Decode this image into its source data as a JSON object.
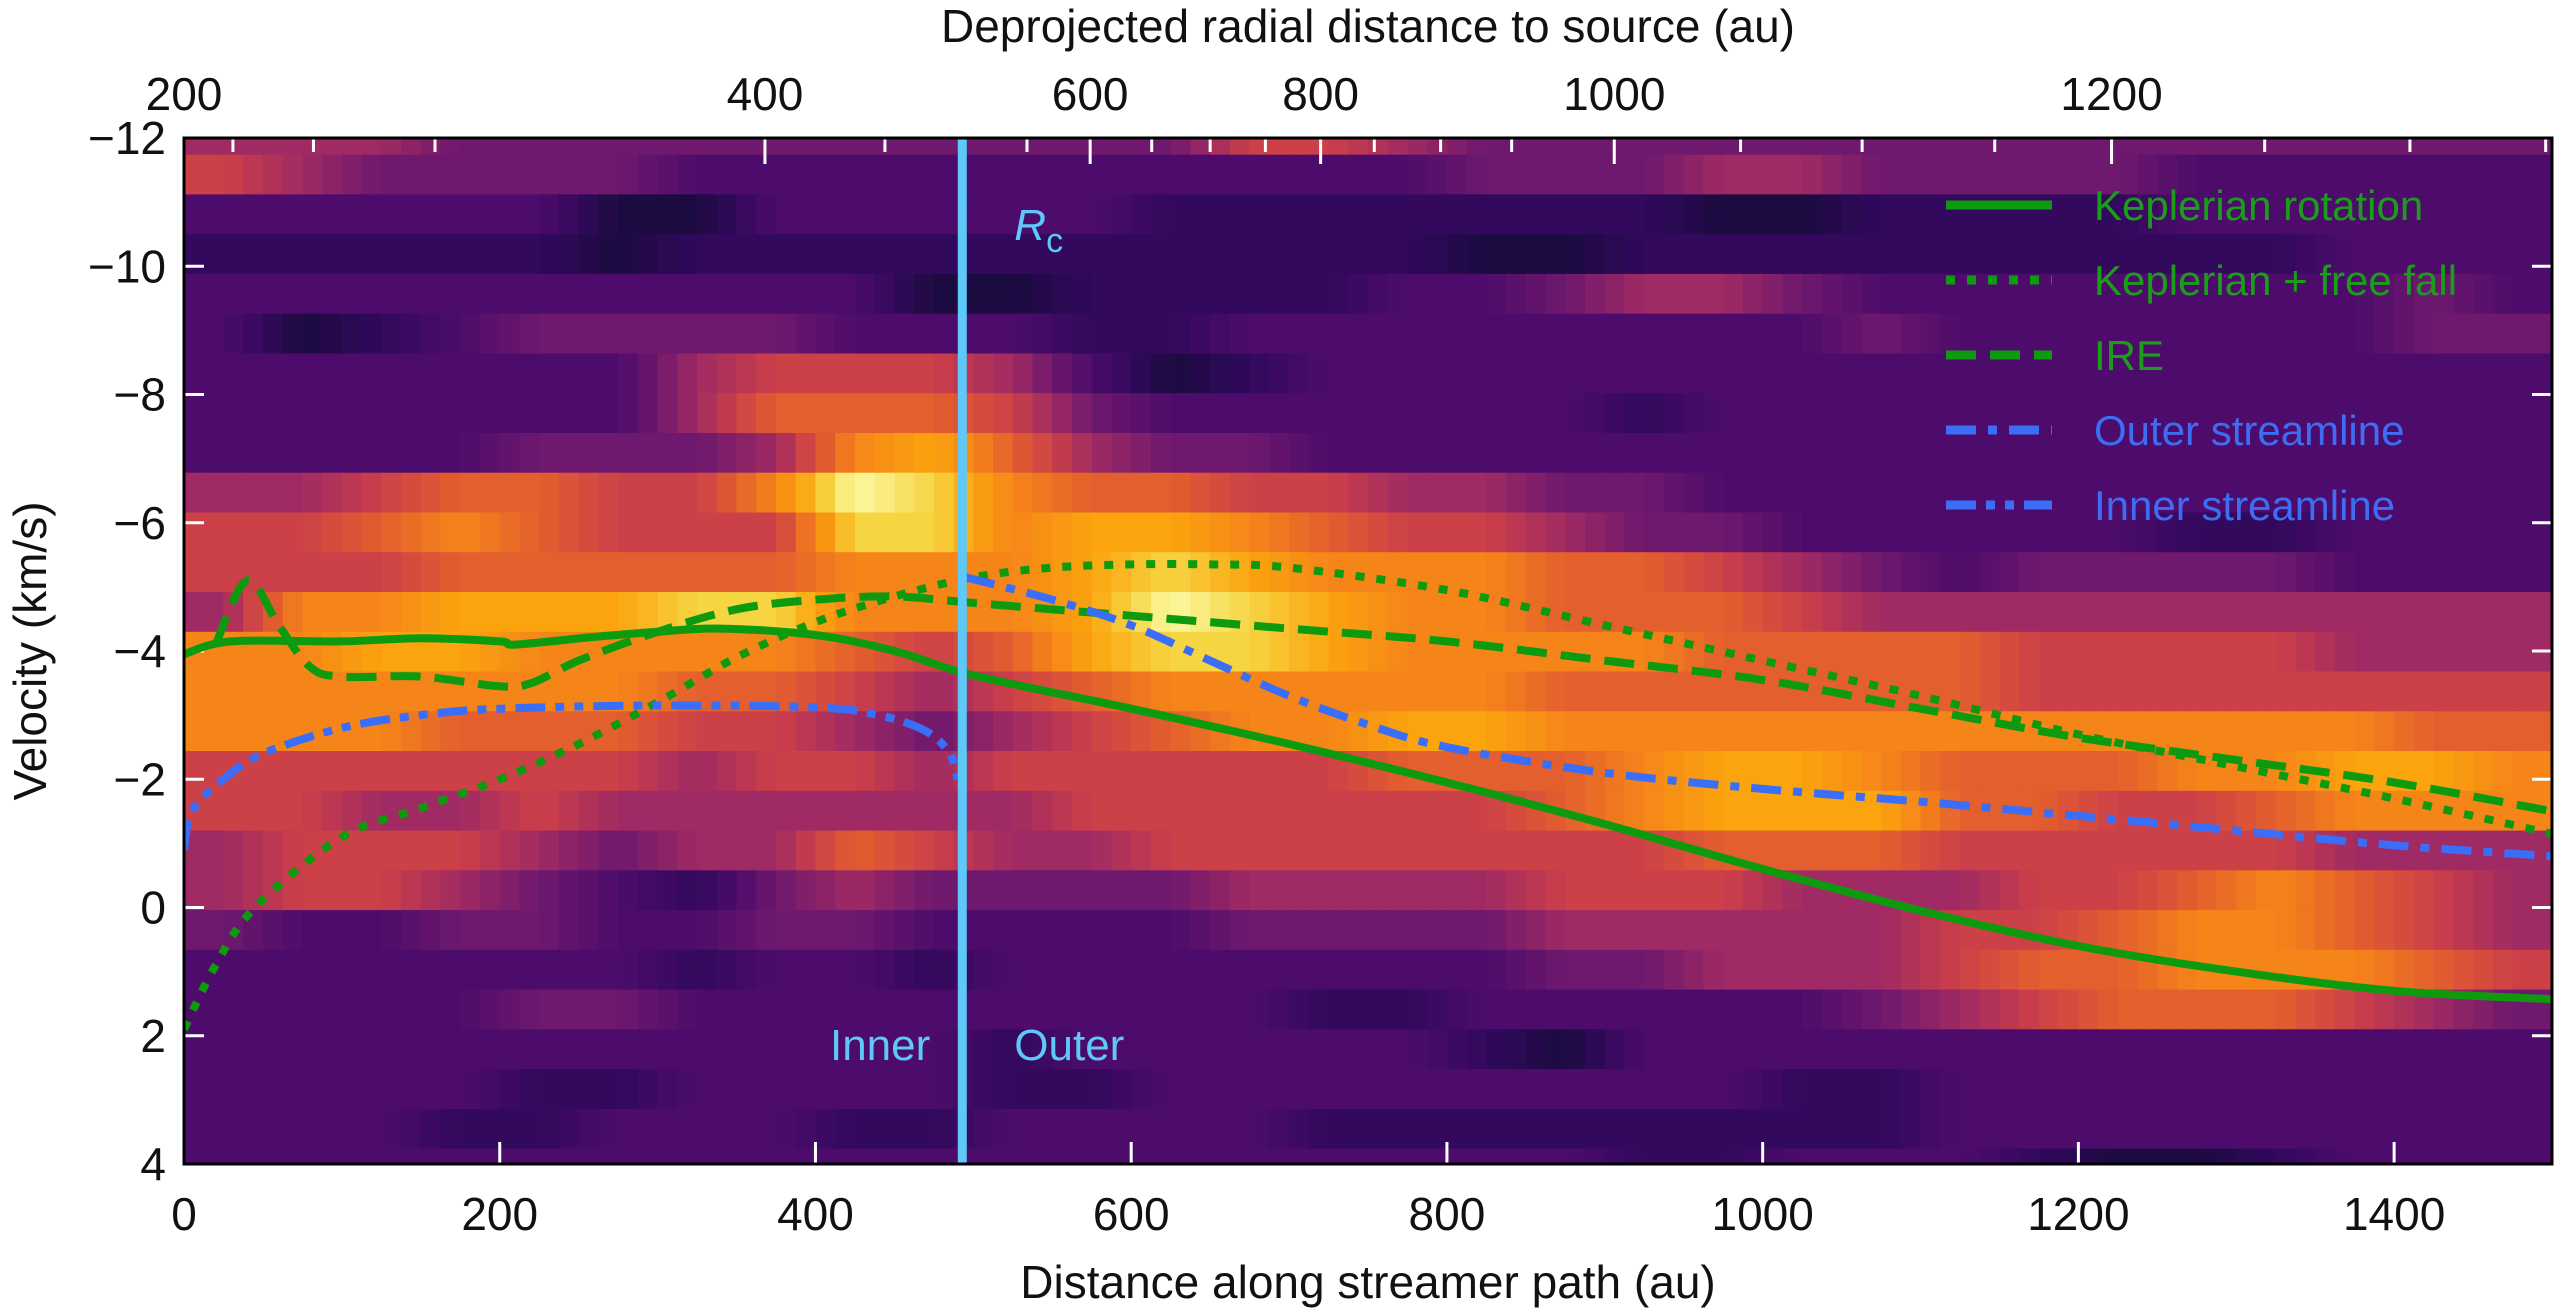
{
  "chart_data": {
    "type": "heatmap",
    "title": "",
    "xlabel": "Distance along streamer path (au)",
    "ylabel": "Velocity (km/s)",
    "top_xlabel": "Deprojected radial distance to source (au)",
    "xlim": [
      0,
      1500
    ],
    "ylim": [
      4,
      -12
    ],
    "x_ticks": [
      0,
      200,
      400,
      600,
      800,
      1000,
      1200,
      1400
    ],
    "x_tick_labels": [
      "0",
      "200",
      "400",
      "600",
      "800",
      "1000",
      "1200",
      "1400"
    ],
    "y_ticks": [
      -12,
      -10,
      -8,
      -6,
      -4,
      -2,
      0,
      2,
      4
    ],
    "y_tick_labels": [
      "−12",
      "−10",
      "−8",
      "−6",
      "−4",
      "−2",
      "0",
      "2",
      "4"
    ],
    "top_axis": {
      "major_ticks": [
        {
          "label": "200",
          "at_path_au": 0
        },
        {
          "label": "400",
          "at_path_au": 368
        },
        {
          "label": "600",
          "at_path_au": 574
        },
        {
          "label": "800",
          "at_path_au": 720
        },
        {
          "label": "1000",
          "at_path_au": 906
        },
        {
          "label": "1200",
          "at_path_au": 1221
        }
      ],
      "minor_ticks_at_path_au": [
        31,
        82,
        159,
        444,
        534,
        613,
        650,
        685,
        754,
        796,
        841,
        986,
        1063,
        1147,
        1318,
        1410,
        1496
      ]
    },
    "grid": false,
    "legend_placement": "top-right",
    "colormap": "inferno",
    "heatmap": {
      "x_start": 0,
      "x_step": 50,
      "channel_start_kms": -12.36,
      "channel_width_kms": 0.62,
      "intensity_scale": "0-b (hex, 0 = faint, b = brightest)",
      "rows": [
        "555444444444466544444444444444",
        "654444333333333344455444433333",
        "333331133333222222211222233333",
        "222221222222222211222222222333",
        "333333333112222334554333333343",
        "312344443332233333333433333344",
        "333333566653123333333333333333",
        "333333577764333333233333333333",
        "333344458975443333333333333333",
        "55677668ba87766554433333333333",
        "66787666aa89987665443333322333",
        "666777778889a98887765434444333",
        "588999aa8889ba9887776555555555",
        "889988887679aa9888877776666555",
        "888888776567888887777776666666",
        "888777665456788998888888888877",
        "666666566566666777899877788998",
        "665565555556666667899977667888",
        "566654557655666666677766666555",
        "566543245444455556665556678765",
        "433443344333344445555566788765",
        "333333233233333334455567788876",
        "333344333333332233333456777654",
        "333333333323333321333333333333",
        "333322333322333333332233333333",
        "333223332233332222222233333333",
        "333333333333333333223332112333"
      ]
    },
    "series": [
      {
        "name": "Keplerian rotation",
        "style": "solid",
        "color": "#0e9a0e",
        "x": [
          0,
          30,
          100,
          150,
          200,
          210,
          260,
          300,
          340,
          400,
          450,
          500,
          600,
          700,
          800,
          900,
          1000,
          1100,
          1200,
          1300,
          1400,
          1500
        ],
        "y": [
          -3.95,
          -4.15,
          -4.15,
          -4.2,
          -4.15,
          -4.1,
          -4.22,
          -4.3,
          -4.35,
          -4.25,
          -4.0,
          -3.62,
          -3.1,
          -2.55,
          -1.95,
          -1.3,
          -0.6,
          0.05,
          0.6,
          1.0,
          1.3,
          1.43
        ]
      },
      {
        "name": "Keplerian + free fall",
        "style": "dotted",
        "color": "#0e9a0e",
        "x": [
          0,
          20,
          45,
          100,
          150,
          200,
          250,
          300,
          350,
          400,
          450,
          500,
          550,
          600,
          650,
          700,
          800,
          900,
          1000,
          1100,
          1200,
          1300,
          1400,
          1500
        ],
        "y": [
          1.9,
          0.9,
          0.0,
          -1.1,
          -1.55,
          -2.0,
          -2.55,
          -3.2,
          -3.9,
          -4.45,
          -4.85,
          -5.15,
          -5.3,
          -5.35,
          -5.35,
          -5.3,
          -4.95,
          -4.4,
          -3.85,
          -3.3,
          -2.7,
          -2.2,
          -1.7,
          -1.15
        ]
      },
      {
        "name": "IRE",
        "style": "dashed",
        "color": "#0e9a0e",
        "x": [
          20,
          40,
          60,
          80,
          100,
          150,
          200,
          220,
          250,
          300,
          350,
          400,
          450,
          500,
          600,
          700,
          800,
          900,
          1000,
          1100,
          1200,
          1300,
          1400,
          1500
        ],
        "y": [
          -4.1,
          -5.1,
          -4.4,
          -3.75,
          -3.6,
          -3.6,
          -3.45,
          -3.5,
          -3.85,
          -4.3,
          -4.65,
          -4.8,
          -4.85,
          -4.75,
          -4.55,
          -4.35,
          -4.15,
          -3.85,
          -3.55,
          -3.1,
          -2.65,
          -2.3,
          -1.95,
          -1.5
        ]
      },
      {
        "name": "Outer streamline",
        "style": "dashdot",
        "color": "#3a6ef7",
        "x": [
          495,
          550,
          600,
          650,
          700,
          750,
          800,
          900,
          1000,
          1100,
          1200,
          1300,
          1400,
          1500
        ],
        "y": [
          -5.15,
          -4.8,
          -4.4,
          -3.85,
          -3.3,
          -2.85,
          -2.5,
          -2.1,
          -1.85,
          -1.65,
          -1.43,
          -1.2,
          -0.97,
          -0.8
        ]
      },
      {
        "name": "Inner streamline",
        "style": "dashdotdot",
        "color": "#3a6ef7",
        "x": [
          0,
          5,
          25,
          50,
          100,
          150,
          200,
          300,
          400,
          440,
          470,
          485,
          490
        ],
        "y": [
          -0.9,
          -1.5,
          -2.0,
          -2.4,
          -2.8,
          -3.0,
          -3.1,
          -3.15,
          -3.12,
          -3.0,
          -2.75,
          -2.4,
          -2.0
        ]
      }
    ],
    "annotations": {
      "rc_line_au": 493,
      "rc_label_main": "R",
      "rc_label_sub": "c",
      "inner_label": "Inner",
      "outer_label": "Outer",
      "rc_color": "#5ec8f8"
    },
    "colors": {
      "green_text": "#1a9e1a",
      "blue_text": "#3d6df2"
    }
  }
}
